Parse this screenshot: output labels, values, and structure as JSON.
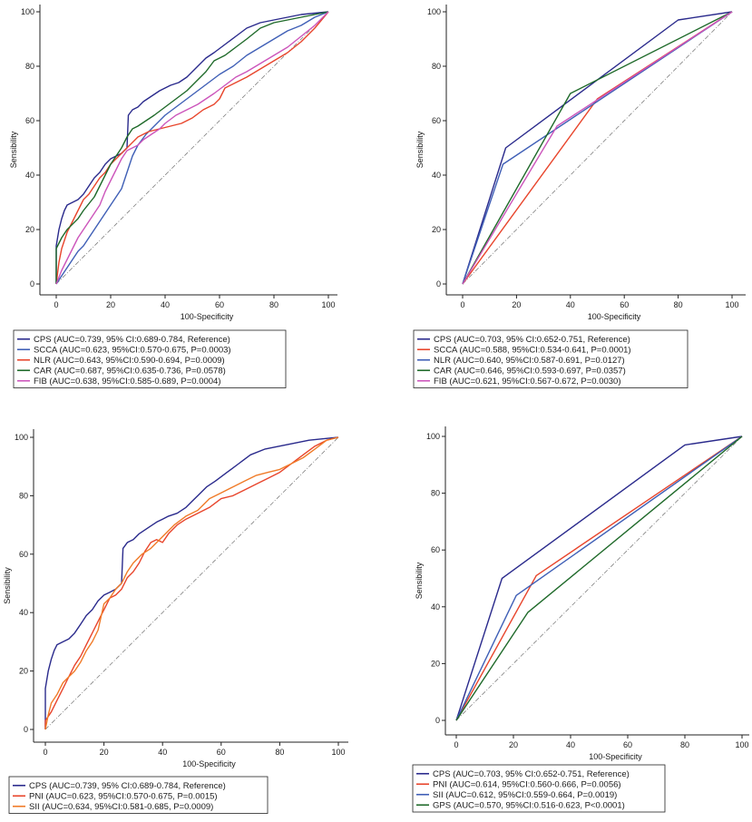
{
  "colors": {
    "CPS": "#2a2a8c",
    "SCCA": "#3f5fb6",
    "NLR": "#e8452c",
    "CAR": "#1f6a2a",
    "FIB": "#cc55bb",
    "PNI": "#e8452c",
    "SII": "#f07b28",
    "GPS": "#1f6a2a",
    "diagonal": "#808080"
  },
  "chart_data": [
    {
      "type": "line",
      "xlabel": "100-Specificity",
      "ylabel": "Sensibility",
      "xlim": [
        0,
        100
      ],
      "ylim": [
        0,
        100
      ],
      "xticks": [
        "0",
        "20",
        "40",
        "60",
        "80",
        "100"
      ],
      "yticks": [
        "0",
        "20",
        "40",
        "60",
        "80",
        "100"
      ],
      "grid": false,
      "legend_position": "below",
      "series": [
        {
          "name": "CPS",
          "legend": "CPS (AUC=0.739, 95% CI:0.689-0.784, Reference)",
          "color_key": "CPS",
          "x": [
            0,
            0,
            1,
            2,
            3,
            4,
            6,
            8,
            10,
            12,
            14,
            16,
            18,
            20,
            22,
            24,
            26,
            26.5,
            28,
            30,
            32,
            35,
            38,
            40,
            42,
            45,
            48,
            50,
            52,
            55,
            58,
            62,
            66,
            70,
            75,
            80,
            85,
            90,
            95,
            100
          ],
          "y": [
            0,
            14,
            20,
            24,
            27,
            29,
            30,
            31,
            33,
            36,
            39,
            41,
            44,
            46,
            47,
            48,
            50,
            62,
            64,
            65,
            67,
            69,
            71,
            72,
            73,
            74,
            76,
            78,
            80,
            83,
            85,
            88,
            91,
            94,
            96,
            97,
            98,
            99,
            99.5,
            100
          ]
        },
        {
          "name": "SCCA",
          "legend": "SCCA (AUC=0.623, 95%CI:0.570-0.675, P=0.0003)",
          "color_key": "SCCA",
          "x": [
            0,
            2,
            4,
            6,
            8,
            10,
            12,
            14,
            16,
            18,
            20,
            22,
            24,
            26,
            28,
            30,
            33,
            36,
            40,
            44,
            48,
            52,
            56,
            60,
            65,
            70,
            75,
            80,
            85,
            90,
            95,
            100
          ],
          "y": [
            0,
            3,
            6,
            9,
            12,
            14,
            17,
            20,
            23,
            26,
            29,
            32,
            35,
            41,
            47,
            51,
            55,
            58,
            62,
            65,
            68,
            71,
            74,
            77,
            80,
            84,
            87,
            90,
            93,
            95,
            98,
            100
          ]
        },
        {
          "name": "NLR",
          "legend": "NLR (AUC=0.643, 95%CI:0.590-0.694, P=0.0009)",
          "color_key": "NLR",
          "x": [
            0,
            1,
            2,
            4,
            6,
            8,
            10,
            12,
            14,
            16,
            18,
            20,
            22,
            24,
            26,
            28,
            30,
            34,
            38,
            42,
            46,
            50,
            54,
            58,
            60,
            62,
            66,
            70,
            75,
            80,
            85,
            90,
            95,
            100
          ],
          "y": [
            0,
            8,
            13,
            19,
            23,
            27,
            31,
            33,
            36,
            39,
            41,
            44,
            46,
            48,
            50,
            52,
            54,
            56,
            57,
            58,
            59,
            61,
            64,
            66,
            68,
            72,
            74,
            76,
            79,
            82,
            85,
            89,
            94,
            100
          ]
        },
        {
          "name": "CAR",
          "legend": "CAR (AUC=0.687, 95%CI:0.635-0.736, P=0.0578)",
          "color_key": "CAR",
          "x": [
            0,
            0,
            2,
            4,
            6,
            8,
            10,
            14,
            16,
            18,
            20,
            22,
            24,
            26,
            28,
            30,
            33,
            36,
            40,
            44,
            48,
            52,
            55,
            58,
            62,
            66,
            70,
            75,
            80,
            85,
            90,
            95,
            100
          ],
          "y": [
            0,
            13,
            17,
            20,
            22,
            24,
            27,
            32,
            36,
            40,
            44,
            47,
            50,
            54,
            57,
            58,
            60,
            62,
            65,
            68,
            71,
            75,
            78,
            82,
            84,
            87,
            90,
            94,
            96,
            97,
            98,
            99,
            100
          ]
        },
        {
          "name": "FIB",
          "legend": "FIB (AUC=0.638, 95%CI:0.585-0.689, P=0.0004)",
          "color_key": "FIB",
          "x": [
            0,
            2,
            4,
            6,
            8,
            10,
            12,
            14,
            16,
            18,
            20,
            22,
            24,
            26,
            28,
            30,
            32,
            35,
            38,
            40,
            44,
            48,
            52,
            55,
            58,
            62,
            66,
            70,
            75,
            80,
            85,
            90,
            95,
            100
          ],
          "y": [
            0,
            5,
            9,
            13,
            17,
            20,
            23,
            26,
            29,
            34,
            38,
            42,
            46,
            49,
            50,
            51,
            53,
            55,
            57,
            59,
            62,
            64,
            66,
            68,
            70,
            73,
            76,
            78,
            81,
            84,
            87,
            91,
            95,
            100
          ]
        },
        {
          "name": "",
          "color_key": "diagonal",
          "dashed": true,
          "x": [
            0,
            100
          ],
          "y": [
            0,
            100
          ]
        }
      ]
    },
    {
      "type": "line",
      "xlabel": "100-Specificity",
      "ylabel": "Sensibility",
      "xlim": [
        0,
        100
      ],
      "ylim": [
        0,
        100
      ],
      "xticks": [
        "0",
        "20",
        "40",
        "60",
        "80",
        "100"
      ],
      "yticks": [
        "0",
        "20",
        "40",
        "60",
        "80",
        "100"
      ],
      "grid": false,
      "legend_position": "below",
      "series": [
        {
          "name": "CPS",
          "legend": "CPS (AUC=0.703, 95% CI:0.652-0.751, Reference)",
          "color_key": "CPS",
          "x": [
            0,
            16,
            80,
            100
          ],
          "y": [
            0,
            50,
            97,
            100
          ]
        },
        {
          "name": "SCCA",
          "legend": "SCCA (AUC=0.588, 95%CI:0.534-0.641, P=0.0001)",
          "color_key": "NLR",
          "x": [
            0,
            50,
            100
          ],
          "y": [
            0,
            68,
            100
          ]
        },
        {
          "name": "NLR",
          "legend": "NLR (AUC=0.640, 95%CI:0.587-0.691, P=0.0127)",
          "color_key": "SCCA",
          "x": [
            0,
            15,
            100
          ],
          "y": [
            0,
            44,
            100
          ]
        },
        {
          "name": "CAR",
          "legend": "CAR (AUC=0.646, 95%CI:0.593-0.697, P=0.0357)",
          "color_key": "CAR",
          "x": [
            0,
            40,
            100
          ],
          "y": [
            0,
            70,
            100
          ]
        },
        {
          "name": "FIB",
          "legend": "FIB (AUC=0.621, 95%CI:0.567-0.672, P=0.0030)",
          "color_key": "FIB",
          "x": [
            0,
            35,
            100
          ],
          "y": [
            0,
            58,
            100
          ]
        },
        {
          "name": "",
          "color_key": "diagonal",
          "dashed": true,
          "x": [
            0,
            100
          ],
          "y": [
            0,
            100
          ]
        }
      ]
    },
    {
      "type": "line",
      "xlabel": "100-Specificity",
      "ylabel": "Sensibility",
      "xlim": [
        0,
        100
      ],
      "ylim": [
        0,
        100
      ],
      "xticks": [
        "0",
        "20",
        "40",
        "60",
        "80",
        "100"
      ],
      "yticks": [
        "0",
        "20",
        "40",
        "60",
        "80",
        "100"
      ],
      "grid": false,
      "legend_position": "below",
      "series": [
        {
          "name": "CPS",
          "legend": "CPS (AUC=0.739, 95% CI:0.689-0.784, Reference)",
          "color_key": "CPS",
          "x": [
            0,
            0,
            1,
            2,
            3,
            4,
            6,
            8,
            10,
            12,
            14,
            16,
            18,
            20,
            22,
            24,
            26,
            26.5,
            28,
            30,
            32,
            35,
            38,
            40,
            42,
            45,
            48,
            50,
            52,
            55,
            58,
            62,
            66,
            70,
            75,
            80,
            85,
            90,
            95,
            100
          ],
          "y": [
            0,
            14,
            20,
            24,
            27,
            29,
            30,
            31,
            33,
            36,
            39,
            41,
            44,
            46,
            47,
            48,
            50,
            62,
            64,
            65,
            67,
            69,
            71,
            72,
            73,
            74,
            76,
            78,
            80,
            83,
            85,
            88,
            91,
            94,
            96,
            97,
            98,
            99,
            99.5,
            100
          ]
        },
        {
          "name": "PNI",
          "legend": "PNI (AUC=0.623, 95%CI:0.570-0.675, P=0.0015)",
          "color_key": "PNI",
          "x": [
            0,
            0,
            2,
            4,
            6,
            8,
            10,
            12,
            14,
            16,
            18,
            20,
            22,
            24,
            26,
            28,
            30,
            32,
            34,
            36,
            38,
            40,
            42,
            45,
            48,
            52,
            56,
            60,
            64,
            68,
            72,
            76,
            80,
            84,
            88,
            92,
            96,
            100
          ],
          "y": [
            0,
            3,
            6,
            10,
            14,
            18,
            22,
            25,
            29,
            33,
            37,
            41,
            45,
            46,
            48,
            52,
            54,
            57,
            61,
            64,
            65,
            64,
            67,
            70,
            72,
            74,
            76,
            79,
            80,
            82,
            84,
            86,
            88,
            91,
            94,
            97,
            99,
            100
          ]
        },
        {
          "name": "SII",
          "legend": "SII (AUC=0.634, 95%CI:0.581-0.685, P=0.0009)",
          "color_key": "SII",
          "x": [
            0,
            1,
            2,
            4,
            6,
            8,
            10,
            12,
            14,
            16,
            18,
            20,
            22,
            24,
            26,
            28,
            30,
            33,
            36,
            40,
            44,
            48,
            52,
            56,
            60,
            64,
            68,
            72,
            76,
            80,
            84,
            88,
            92,
            96,
            100
          ],
          "y": [
            0,
            5,
            9,
            12,
            16,
            18,
            20,
            23,
            27,
            30,
            34,
            43,
            45,
            48,
            50,
            54,
            57,
            60,
            62,
            66,
            70,
            73,
            75,
            79,
            81,
            83,
            85,
            87,
            88,
            89,
            91,
            93,
            96,
            99,
            100
          ]
        },
        {
          "name": "",
          "color_key": "diagonal",
          "dashed": true,
          "x": [
            0,
            100
          ],
          "y": [
            0,
            100
          ]
        }
      ]
    },
    {
      "type": "line",
      "xlabel": "100-Specificity",
      "ylabel": "Sensibility",
      "xlim": [
        0,
        100
      ],
      "ylim": [
        0,
        100
      ],
      "xticks": [
        "0",
        "20",
        "40",
        "60",
        "80",
        "100"
      ],
      "yticks": [
        "0",
        "20",
        "40",
        "60",
        "80",
        "100"
      ],
      "grid": false,
      "legend_position": "below",
      "series": [
        {
          "name": "CPS",
          "legend": "CPS (AUC=0.703, 95% CI:0.652-0.751, Reference)",
          "color_key": "CPS",
          "x": [
            0,
            16,
            80,
            100
          ],
          "y": [
            0,
            50,
            97,
            100
          ]
        },
        {
          "name": "PNI",
          "legend": "PNI (AUC=0.614, 95%CI:0.560-0.666, P=0.0056)",
          "color_key": "PNI",
          "x": [
            0,
            28,
            100
          ],
          "y": [
            0,
            51,
            100
          ]
        },
        {
          "name": "SII",
          "legend": "SII (AUC=0.612, 95%CI:0.559-0.664, P=0.0019)",
          "color_key": "SCCA",
          "x": [
            0,
            21,
            100
          ],
          "y": [
            0,
            44,
            100
          ]
        },
        {
          "name": "GPS",
          "legend": "GPS (AUC=0.570, 95%CI:0.516-0.623, P<0.0001)",
          "color_key": "GPS",
          "x": [
            0,
            25,
            100
          ],
          "y": [
            0,
            38,
            100
          ]
        },
        {
          "name": "",
          "color_key": "diagonal",
          "dashed": true,
          "x": [
            0,
            100
          ],
          "y": [
            0,
            100
          ]
        }
      ]
    }
  ]
}
